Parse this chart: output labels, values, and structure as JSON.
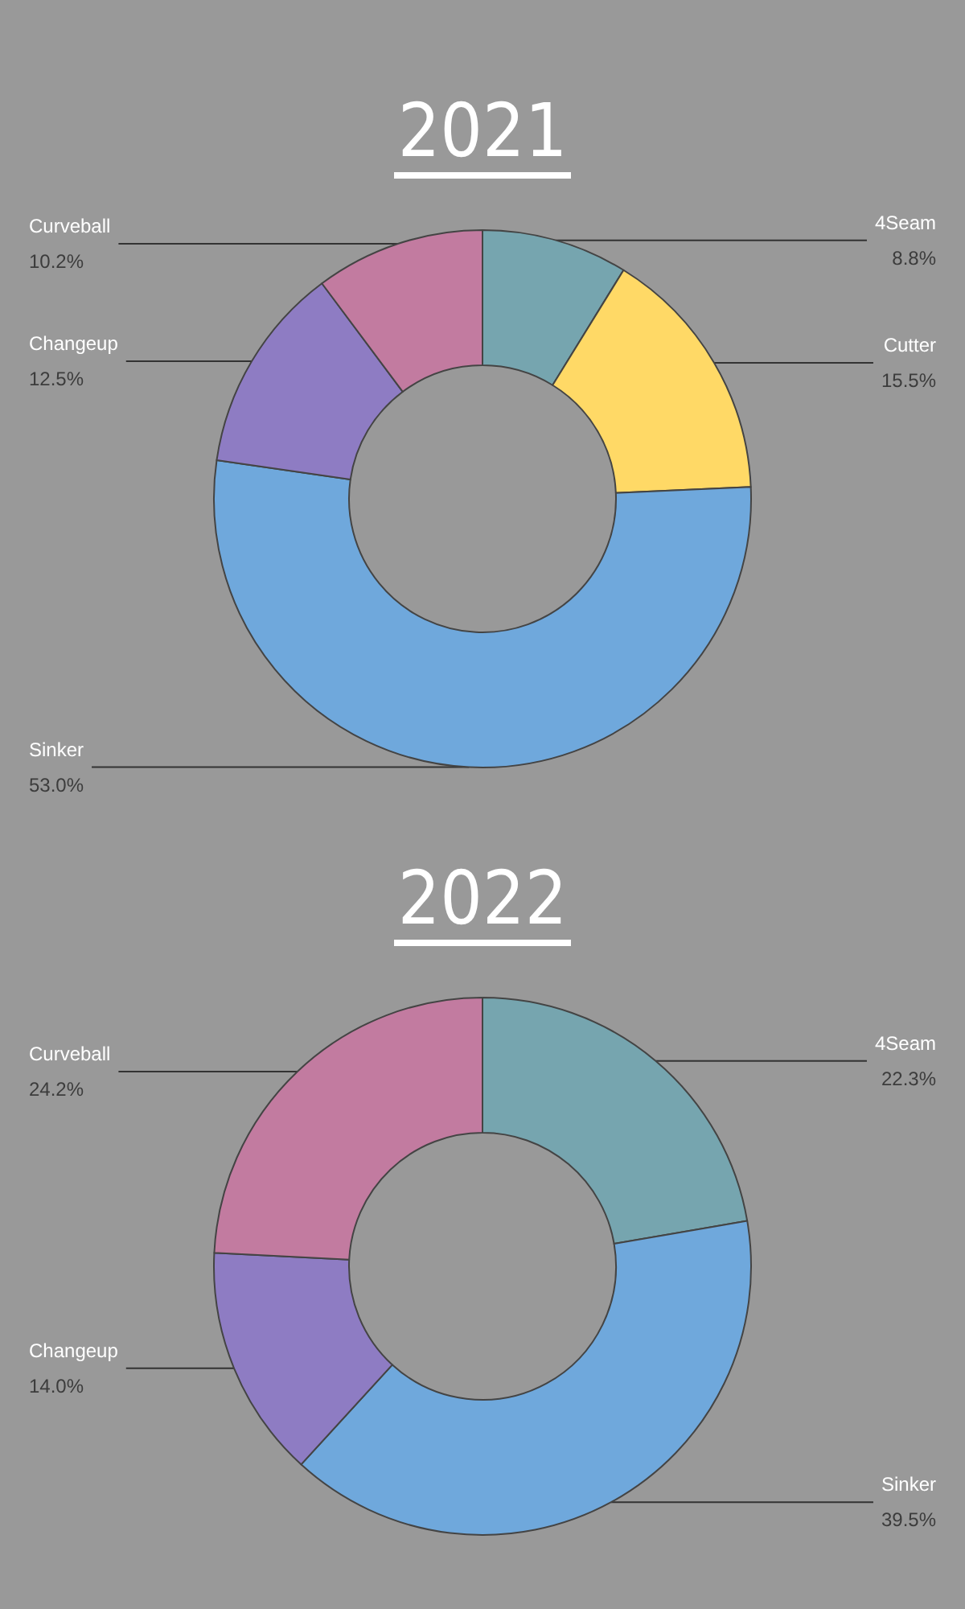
{
  "chart_data": [
    {
      "type": "donut",
      "title": "2021",
      "categories": [
        "4Seam",
        "Cutter",
        "Sinker",
        "Changeup",
        "Curveball"
      ],
      "values": [
        8.8,
        15.5,
        53.0,
        12.5,
        10.2
      ],
      "value_labels": [
        "8.8%",
        "15.5%",
        "53.0%",
        "12.5%",
        "10.2%"
      ],
      "colors": [
        "#76a5af",
        "#ffd966",
        "#6fa8dc",
        "#8e7cc3",
        "#c27ba0"
      ],
      "legend": false
    },
    {
      "type": "donut",
      "title": "2022",
      "categories": [
        "4Seam",
        "Sinker",
        "Changeup",
        "Curveball"
      ],
      "values": [
        22.3,
        39.5,
        14.0,
        24.2
      ],
      "value_labels": [
        "22.3%",
        "39.5%",
        "14.0%",
        "24.2%"
      ],
      "colors": [
        "#76a5af",
        "#6fa8dc",
        "#8e7cc3",
        "#c27ba0"
      ],
      "legend": false
    }
  ]
}
